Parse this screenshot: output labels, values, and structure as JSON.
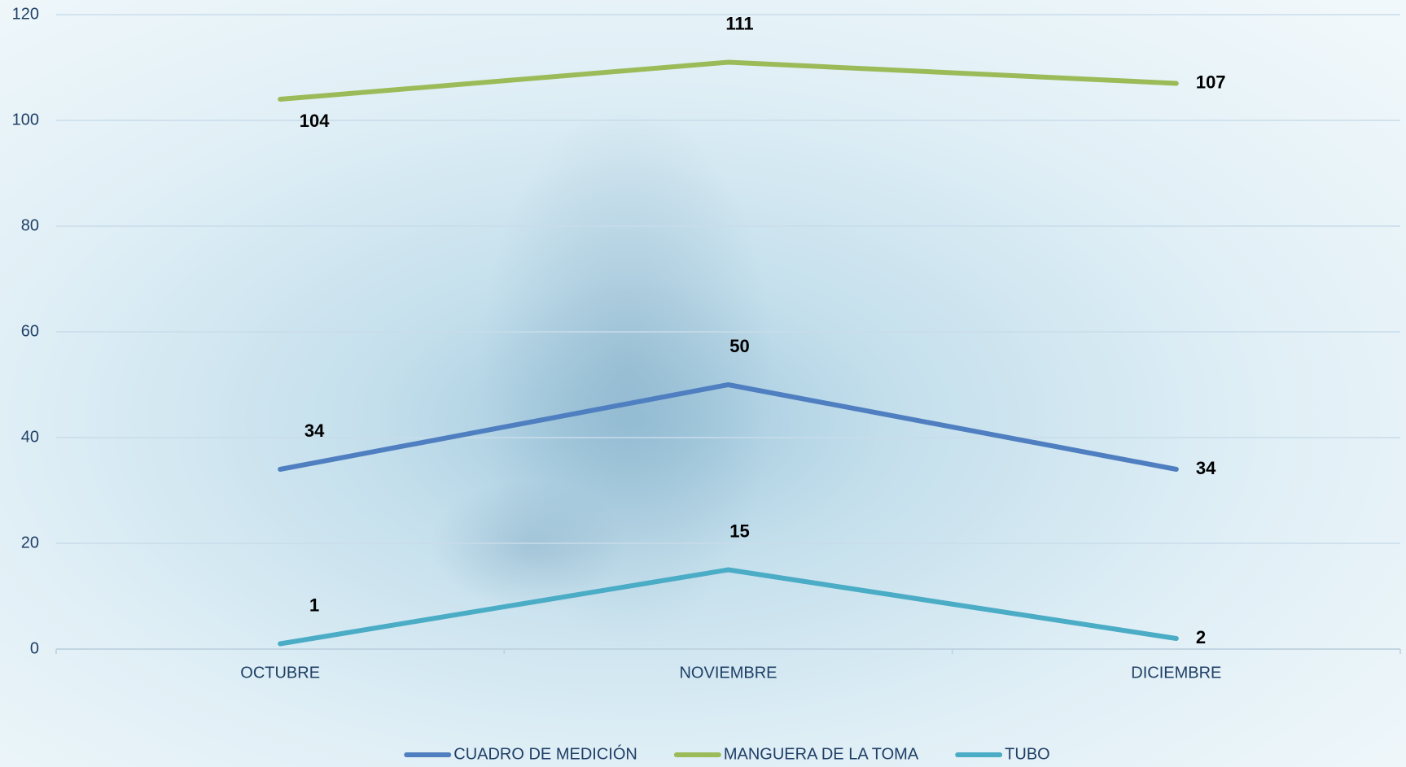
{
  "chart_data": {
    "type": "line",
    "categories": [
      "OCTUBRE",
      "NOVIEMBRE",
      "DICIEMBRE"
    ],
    "series": [
      {
        "name": "CUADRO DE MEDICIÓN",
        "color": "#4f7fc0",
        "values": [
          34,
          50,
          34
        ]
      },
      {
        "name": "MANGUERA DE LA TOMA",
        "color": "#9bbb59",
        "values": [
          104,
          111,
          107
        ]
      },
      {
        "name": "TUBO",
        "color": "#4bacc6",
        "values": [
          1,
          15,
          2
        ]
      }
    ],
    "ylim": [
      0,
      120
    ],
    "yticks": [
      0,
      20,
      40,
      60,
      80,
      100,
      120
    ],
    "grid": true,
    "legend": "bottom"
  }
}
